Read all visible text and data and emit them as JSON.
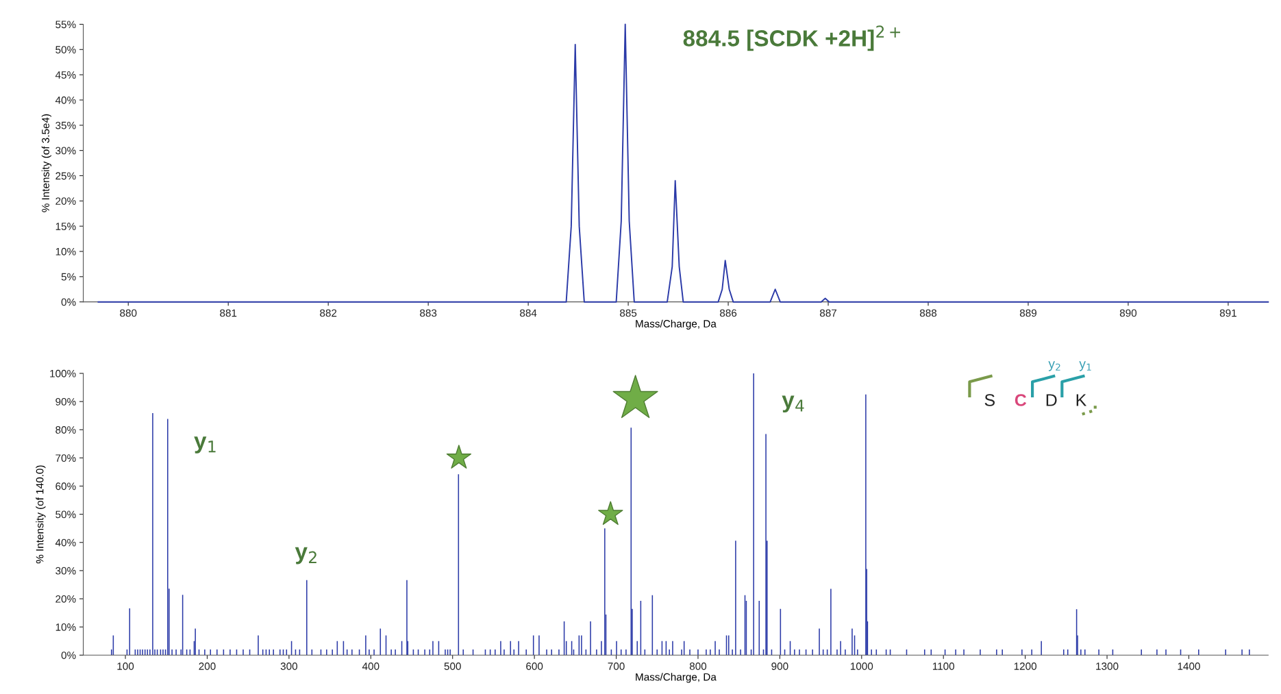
{
  "chart_data": [
    {
      "type": "line",
      "title": "884.5 [SCDK +2H]$^{2+}$",
      "xlabel": "Mass/Charge, Da",
      "ylabel": "% Intensity (of 3.5e4)",
      "xlim": [
        879.55,
        891.4
      ],
      "xticks": [
        880,
        881,
        882,
        883,
        884,
        885,
        886,
        887,
        888,
        889,
        890,
        891
      ],
      "ylim": [
        0,
        55
      ],
      "yticks": [
        {
          "value": 0,
          "label": "0%"
        },
        {
          "value": 5,
          "label": "5%"
        },
        {
          "value": 10,
          "label": "10%"
        },
        {
          "value": 15,
          "label": "15%"
        },
        {
          "value": 20,
          "label": "20%"
        },
        {
          "value": 25,
          "label": "25%"
        },
        {
          "value": 30,
          "label": "30%"
        },
        {
          "value": 35,
          "label": "35%"
        },
        {
          "value": 40,
          "label": "40%"
        },
        {
          "value": 45,
          "label": "45%"
        },
        {
          "value": 50,
          "label": "50%"
        },
        {
          "value": 55,
          "label": "55%"
        }
      ],
      "grid": false,
      "legend": false,
      "marker": "none",
      "line_style": "solid",
      "series": [
        {
          "color": "#2b3aa8",
          "x": [
            879.7,
            884.38,
            884.43,
            884.47,
            884.51,
            884.56,
            884.88,
            884.93,
            884.97,
            885.01,
            885.06,
            885.39,
            885.44,
            885.47,
            885.51,
            885.55,
            885.9,
            885.94,
            885.97,
            886.01,
            886.05,
            886.42,
            886.47,
            886.52,
            886.93,
            886.97,
            887.01,
            891.4
          ],
          "values": [
            0,
            0,
            15,
            51,
            15,
            0,
            0,
            16,
            55,
            16,
            0,
            0,
            7,
            24,
            7,
            0,
            0,
            2.5,
            8.2,
            2.5,
            0,
            0,
            2.5,
            0,
            0,
            0.7,
            0,
            0
          ]
        }
      ]
    },
    {
      "type": "bar",
      "xlabel": "Mass/Charge, Da",
      "ylabel": "% Intensity (of 140.0)",
      "xlim": [
        48.5,
        1497
      ],
      "xticks": [
        100,
        200,
        300,
        400,
        500,
        600,
        700,
        800,
        900,
        1000,
        1100,
        1200,
        1300,
        1400
      ],
      "ylim": [
        0,
        100
      ],
      "yticks": [
        {
          "value": 0,
          "label": "0%"
        },
        {
          "value": 10,
          "label": "10%"
        },
        {
          "value": 20,
          "label": "20%"
        },
        {
          "value": 30,
          "label": "30%"
        },
        {
          "value": 40,
          "label": "40%"
        },
        {
          "value": 50,
          "label": "50%"
        },
        {
          "value": 60,
          "label": "60%"
        },
        {
          "value": 70,
          "label": "70%"
        },
        {
          "value": 80,
          "label": "80%"
        },
        {
          "value": 90,
          "label": "90%"
        },
        {
          "value": 100,
          "label": "100%"
        }
      ],
      "grid": false,
      "legend": false,
      "annotations": [
        {
          "text": "y$_{1}$",
          "x": 151.7,
          "y": 83.8
        },
        {
          "text": "y$_{2}$",
          "x": 321.7,
          "y": 26.6
        },
        {
          "text": "y$_{4}$",
          "x": 868,
          "y": 100
        },
        "S",
        "C",
        "D",
        "K",
        "y$_{2}$",
        "y$_{1}$"
      ],
      "series": [
        {
          "color": "#2b3aa8",
          "x": [
            83,
            85.2,
            102,
            105.2,
            112,
            115,
            118,
            121,
            124,
            127,
            130,
            133.4,
            136,
            139,
            143,
            146,
            149,
            151.7,
            153.4,
            157,
            162,
            168,
            170,
            175,
            179,
            184.1,
            185.5,
            190,
            197,
            204,
            212,
            220,
            228,
            236,
            244,
            252,
            262.4,
            268,
            272,
            276,
            281,
            289,
            293,
            297,
            303.1,
            308,
            313,
            321.7,
            328,
            339,
            346,
            353,
            359,
            366.6,
            371,
            377,
            386,
            393.8,
            398,
            404,
            411.7,
            418.6,
            425,
            430,
            437.9,
            444.1,
            445.2,
            452,
            458,
            466,
            472,
            475.9,
            483,
            491,
            494,
            497,
            507.2,
            513,
            525,
            540,
            546,
            552,
            558.8,
            563,
            570.8,
            575,
            580.7,
            590,
            598.8,
            605.7,
            615,
            621,
            630,
            636.4,
            639,
            645.6,
            648,
            654.6,
            657.6,
            663,
            668.6,
            676,
            681.9,
            686,
            687.4,
            694,
            700.4,
            706,
            712,
            718.2,
            719.6,
            725.7,
            730,
            735,
            744.2,
            750,
            756,
            761,
            765,
            769,
            780,
            783,
            790,
            800,
            810,
            815,
            821,
            826,
            834.8,
            837.5,
            842,
            846,
            852,
            857.4,
            859,
            865,
            868,
            874.8,
            880,
            883,
            884.4,
            890,
            900.8,
            906,
            912.7,
            918,
            924,
            932,
            940,
            948.3,
            953,
            958,
            962.4,
            970,
            974.3,
            980,
            988.4,
            991.4,
            995,
            1005.1,
            1006.2,
            1007.2,
            1012,
            1018,
            1030,
            1035,
            1055,
            1077,
            1085,
            1102,
            1115,
            1125,
            1145,
            1165,
            1172,
            1196,
            1208,
            1219.7,
            1247,
            1252,
            1262.8,
            1264,
            1268,
            1273,
            1290,
            1307,
            1342,
            1361,
            1372,
            1390,
            1412,
            1445,
            1465,
            1474
          ],
          "values": [
            2,
            7,
            2,
            16.6,
            2,
            2,
            2,
            2,
            2,
            2,
            2,
            85.9,
            2,
            2,
            2,
            2,
            2,
            83.8,
            23.6,
            2,
            2,
            2,
            21.4,
            2,
            2,
            5,
            9.4,
            2,
            2,
            2,
            2,
            2,
            2,
            2,
            2,
            2,
            7,
            2,
            2,
            2,
            2,
            2,
            2,
            2,
            5,
            2,
            2,
            26.6,
            2,
            2,
            2,
            2,
            5,
            5,
            2,
            2,
            2,
            7,
            2,
            2,
            9.4,
            7,
            2,
            2,
            5,
            26.6,
            5,
            2,
            2,
            2,
            2,
            5,
            5,
            2,
            2,
            2,
            64.2,
            2,
            2,
            2,
            2,
            2,
            5,
            2,
            5,
            2,
            5,
            2,
            7,
            7,
            2,
            2,
            2,
            12,
            5,
            5,
            2,
            7,
            7,
            2,
            12,
            2,
            5,
            45,
            14.4,
            2,
            5,
            2,
            2,
            80.7,
            16.4,
            5,
            19.3,
            2,
            21.3,
            2,
            5,
            5,
            2,
            5,
            2,
            5,
            2,
            2,
            2,
            2,
            5,
            2,
            7,
            7,
            2,
            40.6,
            2,
            21.3,
            19.3,
            2,
            100,
            19.3,
            2,
            78.5,
            40.6,
            2,
            16.4,
            2,
            5,
            2,
            2,
            2,
            2,
            9.4,
            2,
            2,
            23.5,
            2,
            5,
            2,
            9.4,
            7,
            2,
            92.5,
            30.6,
            12,
            2,
            2,
            2,
            2,
            2,
            2,
            2,
            2,
            2,
            2,
            2,
            2,
            2,
            2,
            2,
            5,
            2,
            2,
            16.3,
            7,
            2,
            2,
            2,
            2,
            2,
            2,
            2,
            2,
            2,
            2,
            2,
            2
          ]
        }
      ]
    }
  ]
}
